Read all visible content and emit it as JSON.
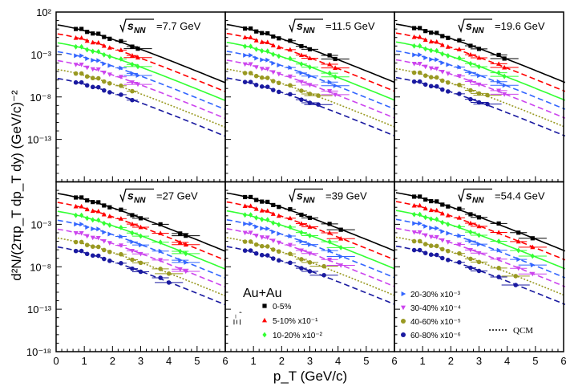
{
  "y_axis_label": "d²N/(2πp_T dp_T dy) (GeV/c)⁻²",
  "x_axis_label": "p_T (GeV/c)",
  "chart_data": {
    "type": "scatter",
    "xlim": [
      0,
      6
    ],
    "ylim_log10": [
      -18,
      2
    ],
    "x_ticks": [
      "0",
      "1",
      "2",
      "3",
      "4",
      "5",
      "6"
    ],
    "y_ticks_top": [
      "10²",
      "10⁻³",
      "10⁻⁸",
      "10⁻¹³"
    ],
    "y_ticks_bottom": [
      "10⁻¹⁸",
      "10⁻¹³",
      "10⁻⁸",
      "10⁻³"
    ],
    "y_scale": "log",
    "grid": false,
    "panels": [
      {
        "energy_label": "=7.7 GeV",
        "energy": 7.7,
        "pt_max": 3.3
      },
      {
        "energy_label": "=11.5 GeV",
        "energy": 11.5,
        "pt_max": 4.3
      },
      {
        "energy_label": "=19.6 GeV",
        "energy": 19.6,
        "pt_max": 4.3
      },
      {
        "energy_label": "=27 GeV",
        "energy": 27,
        "pt_max": 5.0
      },
      {
        "energy_label": "=39 GeV",
        "energy": 39,
        "pt_max": 4.5
      },
      {
        "energy_label": "=54.4 GeV",
        "energy": 54.4,
        "pt_max": 5.3
      }
    ],
    "sqrt_label": "s",
    "sqrt_subscript": "NN",
    "centralities": [
      {
        "label": "0-5%",
        "color": "#000000",
        "marker": "square",
        "dash": "solid",
        "scale_log10": 0
      },
      {
        "label": "5-10% x10⁻¹",
        "color": "#ff0000",
        "marker": "triangle-up",
        "dash": "dashed",
        "scale_log10": -1
      },
      {
        "label": "10-20% x10⁻²",
        "color": "#33ff33",
        "marker": "diamond",
        "dash": "solid",
        "scale_log10": -2
      },
      {
        "label": "20-30% x10⁻³",
        "color": "#3366ff",
        "marker": "triangle-right",
        "dash": "dashed",
        "scale_log10": -3
      },
      {
        "label": "30-40% x10⁻⁴",
        "color": "#cc44ee",
        "marker": "triangle-down",
        "dash": "dashed",
        "scale_log10": -4
      },
      {
        "label": "40-60% x10⁻⁵",
        "color": "#999922",
        "marker": "circle",
        "dash": "dotted",
        "scale_log10": -5
      },
      {
        "label": "60-80% x10⁻⁶",
        "color": "#1a1aa0",
        "marker": "circle",
        "dash": "dashed",
        "scale_log10": -6
      }
    ],
    "spectrum_model": {
      "description": "approximate reading of plotted curves",
      "log10_y_at_pt0_central": 0.5,
      "log10_y_at_pt6_central": -5.5
    },
    "legend": {
      "system": "Au+Au",
      "particle": "Ξ⁻,",
      "model_line": "QCM"
    }
  }
}
